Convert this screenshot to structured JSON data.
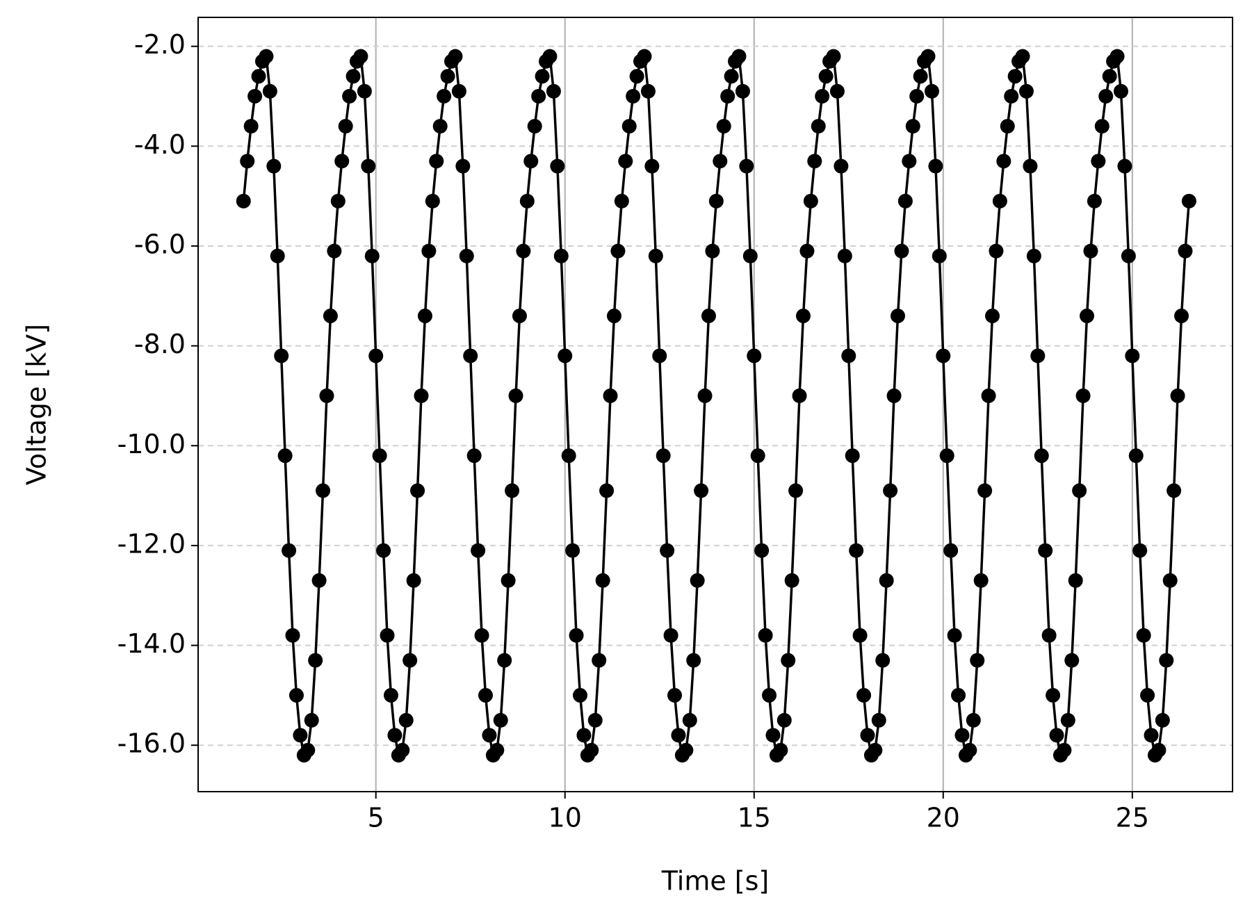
{
  "chart_data": {
    "type": "line",
    "xlabel": "Time [s]",
    "ylabel": "Voltage [kV]",
    "color": "#000000",
    "grid": true,
    "xlim": [
      0.3,
      27.65
    ],
    "ylim": [
      -16.93,
      -1.42
    ],
    "xticks": [
      5,
      10,
      15,
      20,
      25
    ],
    "yticks": [
      {
        "value": -2,
        "label": "-2.0"
      },
      {
        "value": -4,
        "label": "-4.0"
      },
      {
        "value": -6,
        "label": "-6.0"
      },
      {
        "value": -8,
        "label": "-8.0"
      },
      {
        "value": -10,
        "label": "-10.0"
      },
      {
        "value": -12,
        "label": "-12.0"
      },
      {
        "value": -14,
        "label": "-14.0"
      },
      {
        "value": -16,
        "label": "-16.0"
      }
    ],
    "x": [
      1.5,
      1.6,
      1.7,
      1.8,
      1.9,
      2.0,
      2.1,
      2.2,
      2.3,
      2.4,
      2.5,
      2.6,
      2.7,
      2.8,
      2.9,
      3.0,
      3.1,
      3.2,
      3.3,
      3.4,
      3.5,
      3.6,
      3.7,
      3.8,
      3.9,
      4.0,
      4.1,
      4.2,
      4.3,
      4.4,
      4.5,
      4.6,
      4.7,
      4.8,
      4.9,
      5.0,
      5.1,
      5.2,
      5.3,
      5.4,
      5.5,
      5.6,
      5.7,
      5.8,
      5.9,
      6.0,
      6.1,
      6.2,
      6.3,
      6.4,
      6.5,
      6.6,
      6.7,
      6.8,
      6.9,
      7.0,
      7.1,
      7.2,
      7.3,
      7.4,
      7.5,
      7.6,
      7.7,
      7.8,
      7.9,
      8.0,
      8.1,
      8.2,
      8.3,
      8.4,
      8.5,
      8.6,
      8.7,
      8.8,
      8.9,
      9.0,
      9.1,
      9.2,
      9.3,
      9.4,
      9.5,
      9.6,
      9.7,
      9.8,
      9.9,
      10.0,
      10.1,
      10.2,
      10.3,
      10.4,
      10.5,
      10.6,
      10.7,
      10.8,
      10.9,
      11.0,
      11.1,
      11.2,
      11.3,
      11.4,
      11.5,
      11.6,
      11.7,
      11.8,
      11.9,
      12.0,
      12.1,
      12.2,
      12.3,
      12.4,
      12.5,
      12.6,
      12.7,
      12.8,
      12.9,
      13.0,
      13.1,
      13.2,
      13.3,
      13.4,
      13.5,
      13.6,
      13.7,
      13.8,
      13.9,
      14.0,
      14.1,
      14.2,
      14.3,
      14.4,
      14.5,
      14.6,
      14.7,
      14.8,
      14.9,
      15.0,
      15.1,
      15.2,
      15.3,
      15.4,
      15.5,
      15.6,
      15.7,
      15.8,
      15.9,
      16.0,
      16.1,
      16.2,
      16.3,
      16.4,
      16.5,
      16.6,
      16.7,
      16.8,
      16.9,
      17.0,
      17.1,
      17.2,
      17.3,
      17.4,
      17.5,
      17.6,
      17.7,
      17.8,
      17.9,
      18.0,
      18.1,
      18.2,
      18.3,
      18.4,
      18.5,
      18.6,
      18.7,
      18.8,
      18.9,
      19.0,
      19.1,
      19.2,
      19.3,
      19.4,
      19.5,
      19.6,
      19.7,
      19.8,
      19.9,
      20.0,
      20.1,
      20.2,
      20.3,
      20.4,
      20.5,
      20.6,
      20.7,
      20.8,
      20.9,
      21.0,
      21.1,
      21.2,
      21.3,
      21.4,
      21.5,
      21.6,
      21.7,
      21.8,
      21.9,
      22.0,
      22.1,
      22.2,
      22.3,
      22.4,
      22.5,
      22.6,
      22.7,
      22.8,
      22.9,
      23.0,
      23.1,
      23.2,
      23.3,
      23.4,
      23.5,
      23.6,
      23.7,
      23.8,
      23.9,
      24.0,
      24.1,
      24.2,
      24.3,
      24.4,
      24.5,
      24.6,
      24.7,
      24.8,
      24.9,
      25.0,
      25.1,
      25.2,
      25.3,
      25.4,
      25.5,
      25.6,
      25.7,
      25.8,
      25.9,
      26.0,
      26.1,
      26.2,
      26.3,
      26.4,
      26.5
    ],
    "values": [
      -5.1,
      -4.3,
      -3.6,
      -3.0,
      -2.6,
      -2.3,
      -2.2,
      -2.9,
      -4.4,
      -6.2,
      -8.2,
      -10.2,
      -12.1,
      -13.8,
      -15.0,
      -15.8,
      -16.2,
      -16.1,
      -15.5,
      -14.3,
      -12.7,
      -10.9,
      -9.0,
      -7.4,
      -6.1,
      -5.1,
      -4.3,
      -3.6,
      -3.0,
      -2.6,
      -2.3,
      -2.2,
      -2.9,
      -4.4,
      -6.2,
      -8.2,
      -10.2,
      -12.1,
      -13.8,
      -15.0,
      -15.8,
      -16.2,
      -16.1,
      -15.5,
      -14.3,
      -12.7,
      -10.9,
      -9.0,
      -7.4,
      -6.1,
      -5.1,
      -4.3,
      -3.6,
      -3.0,
      -2.6,
      -2.3,
      -2.2,
      -2.9,
      -4.4,
      -6.2,
      -8.2,
      -10.2,
      -12.1,
      -13.8,
      -15.0,
      -15.8,
      -16.2,
      -16.1,
      -15.5,
      -14.3,
      -12.7,
      -10.9,
      -9.0,
      -7.4,
      -6.1,
      -5.1,
      -4.3,
      -3.6,
      -3.0,
      -2.6,
      -2.3,
      -2.2,
      -2.9,
      -4.4,
      -6.2,
      -8.2,
      -10.2,
      -12.1,
      -13.8,
      -15.0,
      -15.8,
      -16.2,
      -16.1,
      -15.5,
      -14.3,
      -12.7,
      -10.9,
      -9.0,
      -7.4,
      -6.1,
      -5.1,
      -4.3,
      -3.6,
      -3.0,
      -2.6,
      -2.3,
      -2.2,
      -2.9,
      -4.4,
      -6.2,
      -8.2,
      -10.2,
      -12.1,
      -13.8,
      -15.0,
      -15.8,
      -16.2,
      -16.1,
      -15.5,
      -14.3,
      -12.7,
      -10.9,
      -9.0,
      -7.4,
      -6.1,
      -5.1,
      -4.3,
      -3.6,
      -3.0,
      -2.6,
      -2.3,
      -2.2,
      -2.9,
      -4.4,
      -6.2,
      -8.2,
      -10.2,
      -12.1,
      -13.8,
      -15.0,
      -15.8,
      -16.2,
      -16.1,
      -15.5,
      -14.3,
      -12.7,
      -10.9,
      -9.0,
      -7.4,
      -6.1,
      -5.1,
      -4.3,
      -3.6,
      -3.0,
      -2.6,
      -2.3,
      -2.2,
      -2.9,
      -4.4,
      -6.2,
      -8.2,
      -10.2,
      -12.1,
      -13.8,
      -15.0,
      -15.8,
      -16.2,
      -16.1,
      -15.5,
      -14.3,
      -12.7,
      -10.9,
      -9.0,
      -7.4,
      -6.1,
      -5.1,
      -4.3,
      -3.6,
      -3.0,
      -2.6,
      -2.3,
      -2.2,
      -2.9,
      -4.4,
      -6.2,
      -8.2,
      -10.2,
      -12.1,
      -13.8,
      -15.0,
      -15.8,
      -16.2,
      -16.1,
      -15.5,
      -14.3,
      -12.7,
      -10.9,
      -9.0,
      -7.4,
      -6.1,
      -5.1,
      -4.3,
      -3.6,
      -3.0,
      -2.6,
      -2.3,
      -2.2,
      -2.9,
      -4.4,
      -6.2,
      -8.2,
      -10.2,
      -12.1,
      -13.8,
      -15.0,
      -15.8,
      -16.2,
      -16.1,
      -15.5,
      -14.3,
      -12.7,
      -10.9,
      -9.0,
      -7.4,
      -6.1,
      -5.1,
      -4.3,
      -3.6,
      -3.0,
      -2.6,
      -2.3,
      -2.2,
      -2.9,
      -4.4,
      -6.2,
      -8.2,
      -10.2,
      -12.1,
      -13.8,
      -15.0,
      -15.8,
      -16.2,
      -16.1,
      -15.5,
      -14.3,
      -12.7,
      -10.9,
      -9.0,
      -7.4,
      -6.1,
      -5.1
    ]
  }
}
